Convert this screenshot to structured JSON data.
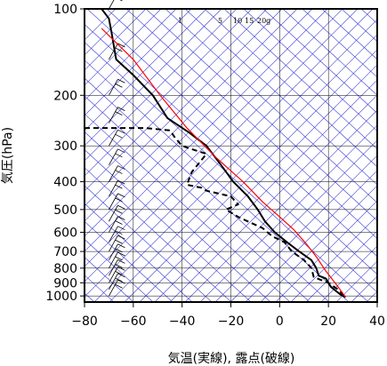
{
  "chart_data": {
    "type": "line",
    "variant": "skew-T log-p aerological diagram",
    "xlabel": "気温(実線), 露点(破線)",
    "ylabel": "気圧(hPa)",
    "xlim": [
      -80,
      40
    ],
    "ylim": [
      1050,
      100
    ],
    "y_scale": "log",
    "grid": true,
    "x_ticks": [
      "−80",
      "−60",
      "−40",
      "−20",
      "0",
      "20",
      "40"
    ],
    "y_ticks": [
      "100",
      "200",
      "300",
      "400",
      "500",
      "600",
      "700",
      "800",
      "900",
      "1000"
    ],
    "mixing_ratio_labels": [
      "1",
      "5",
      "10",
      "15",
      "20g"
    ],
    "colors": {
      "temperature": "#000000",
      "dewpoint": "#000000",
      "parcel": "#ff0000",
      "isotherms_dry_adiabats": "#3b3bd6",
      "grid": "#000000",
      "wind_barbs": "#000000"
    },
    "series": [
      {
        "name": "気温",
        "style": "solid",
        "x": [
          -73,
          -70,
          -69,
          -67,
          -60,
          -52,
          -46,
          -37,
          -30,
          -24,
          -19,
          -13,
          -9,
          -6,
          -2,
          3,
          8,
          13,
          15,
          16,
          19,
          20,
          21,
          23,
          25,
          27
        ],
        "y": [
          100,
          108,
          120,
          150,
          170,
          200,
          240,
          270,
          300,
          350,
          400,
          450,
          500,
          550,
          600,
          650,
          700,
          750,
          800,
          850,
          870,
          900,
          930,
          960,
          990,
          1010
        ]
      },
      {
        "name": "露点",
        "style": "dashed",
        "x": [
          -80,
          -55,
          -45,
          -43,
          -40,
          -35,
          -30,
          -36,
          -38,
          -32,
          -30,
          -20,
          -17,
          -22,
          -17,
          -13,
          -7,
          -3,
          2,
          5,
          10,
          13,
          14,
          20,
          24,
          27
        ],
        "y": [
          260,
          260,
          265,
          280,
          300,
          310,
          320,
          370,
          410,
          420,
          430,
          450,
          480,
          500,
          530,
          550,
          580,
          620,
          650,
          700,
          750,
          800,
          860,
          900,
          950,
          1010
        ]
      },
      {
        "name": "",
        "style": "solid",
        "color_key": "parcel",
        "x": [
          -73,
          -60,
          -49,
          -38,
          -26,
          -15,
          -7,
          0,
          6,
          11,
          15,
          19,
          24,
          27
        ],
        "y": [
          117,
          150,
          200,
          260,
          330,
          400,
          470,
          530,
          590,
          660,
          730,
          820,
          930,
          1010
        ]
      }
    ],
    "wind_barbs_pressure_levels": [
      100,
      150,
      200,
      250,
      300,
      350,
      400,
      450,
      500,
      550,
      600,
      650,
      700,
      750,
      800,
      850,
      900,
      950,
      1000
    ]
  }
}
